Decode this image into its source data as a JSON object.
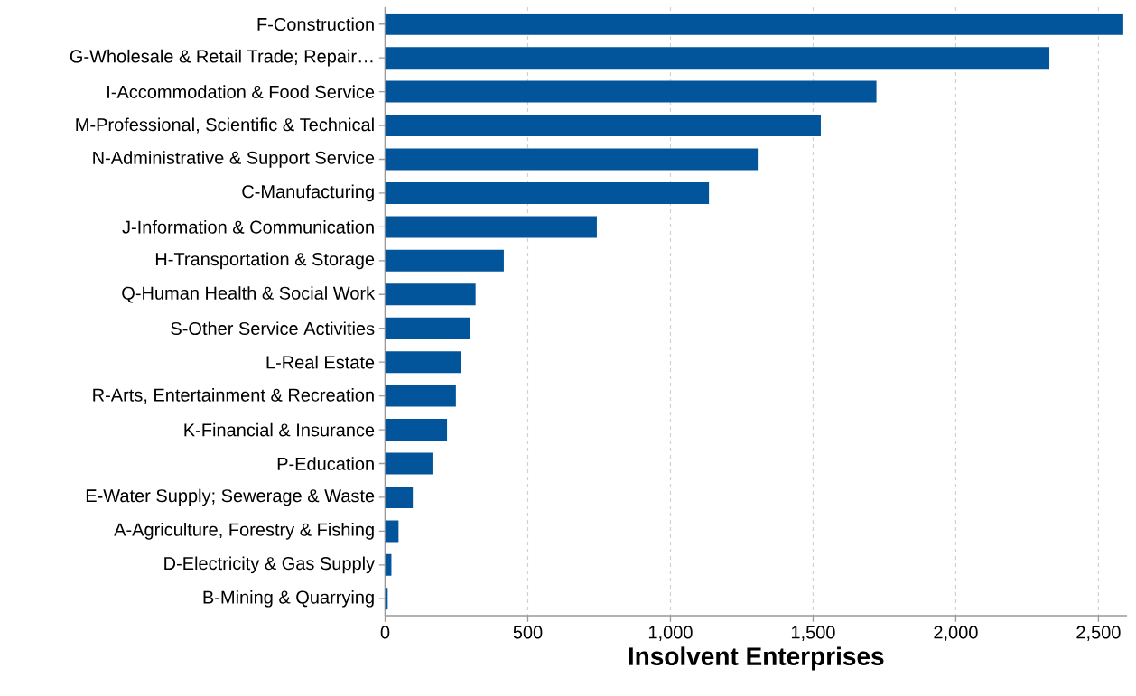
{
  "chart_data": {
    "type": "bar",
    "orientation": "horizontal",
    "xlabel": "Insolvent Enterprises",
    "categories": [
      "F-Construction",
      "G-Wholesale & Retail Trade; Repair…",
      "I-Accommodation & Food Service",
      "M-Professional, Scientific & Technical",
      "N-Administrative & Support Service",
      "C-Manufacturing",
      "J-Information & Communication",
      "H-Transportation & Storage",
      "Q-Human Health & Social Work",
      "S-Other Service Activities",
      "L-Real Estate",
      "R-Arts, Entertainment & Recreation",
      "K-Financial & Insurance",
      "P-Education",
      "E-Water Supply; Sewerage & Waste",
      "A-Agriculture, Forestry & Fishing",
      "D-Electricity & Gas Supply",
      "B-Mining & Quarrying"
    ],
    "values": [
      2587,
      2328,
      1722,
      1527,
      1306,
      1135,
      742,
      416,
      317,
      298,
      266,
      248,
      217,
      166,
      97,
      47,
      22,
      9
    ],
    "color": "#02559a",
    "xlim": [
      0,
      2600
    ],
    "xticks": [
      0,
      500,
      {
        "value": 1000,
        "label": "1,000"
      },
      {
        "value": 1500,
        "label": "1,500"
      },
      {
        "value": 2000,
        "label": "2,000"
      },
      {
        "value": 2500,
        "label": "2,500"
      }
    ],
    "grid": "x"
  }
}
